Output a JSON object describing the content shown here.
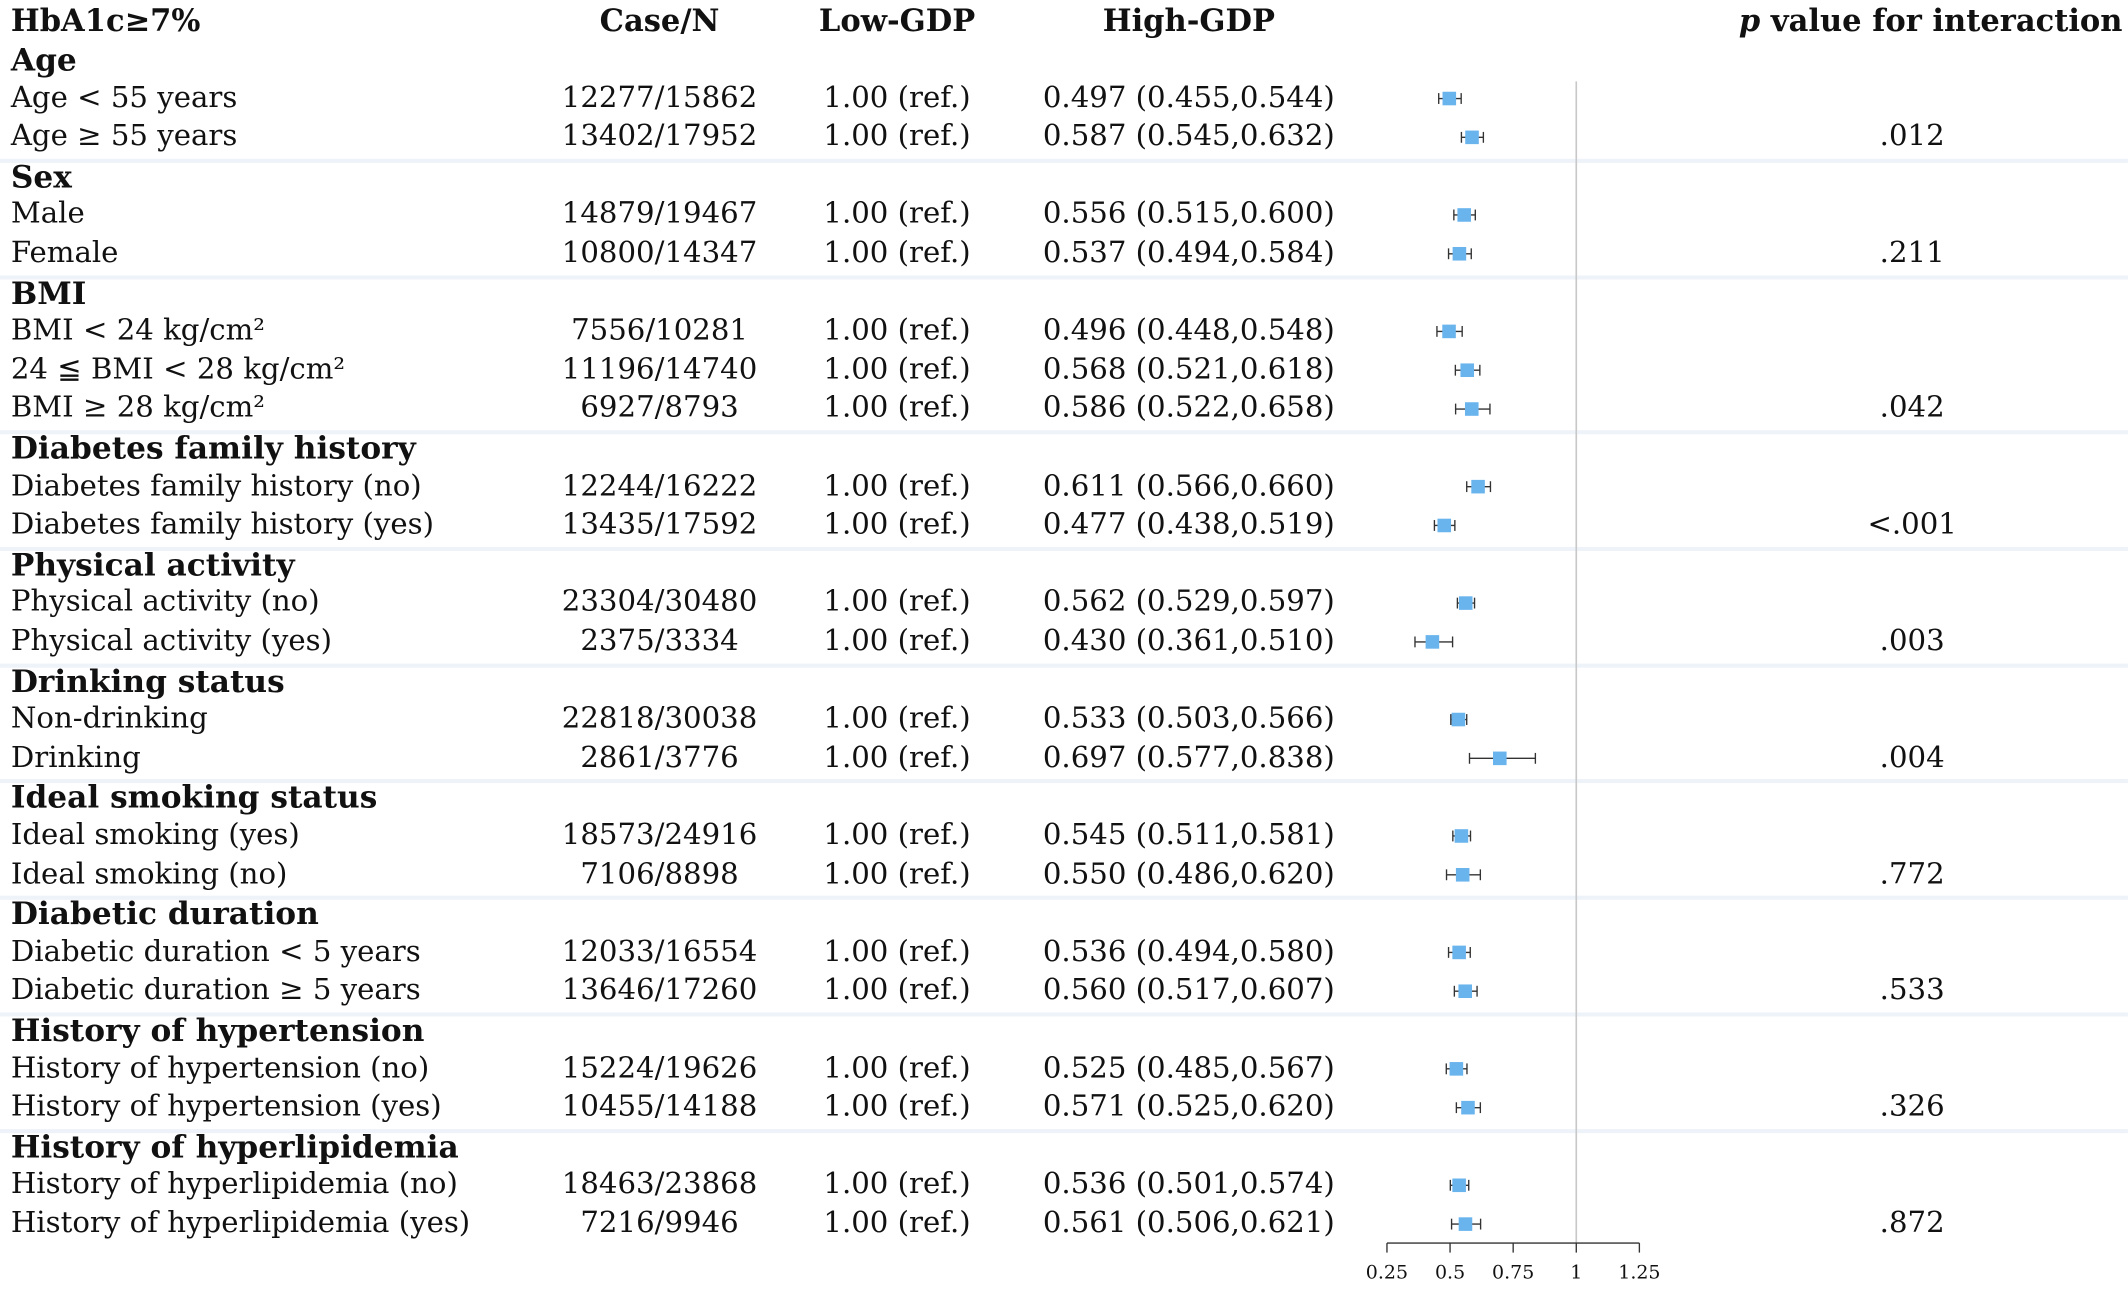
{
  "headers": {
    "outcome": "HbA1c≥7%",
    "case_n": "Case/N",
    "low_gdp": "Low-GDP",
    "high_gdp": "High-GDP",
    "p_label_italic": "p",
    "p_label_rest": "value for interaction"
  },
  "chart_data": {
    "type": "forest",
    "title": "",
    "xlabel": "",
    "xlim": [
      0.25,
      1.25
    ],
    "x_ticks": [
      "0.25",
      "0.5",
      "0.75",
      "1",
      "1.25"
    ],
    "reference_line": 1,
    "marker_color": "#6ab4ee",
    "groups": [
      {
        "title": "Age",
        "p": ".012",
        "rows": [
          {
            "label": "Age < 55 years",
            "case_n": "12277/15862",
            "low": "1.00 (ref.)",
            "high_text": "0.497 (0.455,0.544)",
            "est": 0.497,
            "lo": 0.455,
            "hi": 0.544
          },
          {
            "label": "Age ≥ 55 years",
            "case_n": "13402/17952",
            "low": "1.00 (ref.)",
            "high_text": "0.587 (0.545,0.632)",
            "est": 0.587,
            "lo": 0.545,
            "hi": 0.632
          }
        ]
      },
      {
        "title": "Sex",
        "p": ".211",
        "rows": [
          {
            "label": "Male",
            "case_n": "14879/19467",
            "low": "1.00 (ref.)",
            "high_text": "0.556 (0.515,0.600)",
            "est": 0.556,
            "lo": 0.515,
            "hi": 0.6
          },
          {
            "label": "Female",
            "case_n": "10800/14347",
            "low": "1.00 (ref.)",
            "high_text": "0.537 (0.494,0.584)",
            "est": 0.537,
            "lo": 0.494,
            "hi": 0.584
          }
        ]
      },
      {
        "title": "BMI",
        "p": ".042",
        "rows": [
          {
            "label": "BMI < 24 kg/cm²",
            "case_n": "7556/10281",
            "low": "1.00 (ref.)",
            "high_text": "0.496 (0.448,0.548)",
            "est": 0.496,
            "lo": 0.448,
            "hi": 0.548
          },
          {
            "label": "24 ≦ BMI < 28 kg/cm²",
            "case_n": "11196/14740",
            "low": "1.00 (ref.)",
            "high_text": "0.568 (0.521,0.618)",
            "est": 0.568,
            "lo": 0.521,
            "hi": 0.618
          },
          {
            "label": "BMI ≥ 28 kg/cm²",
            "case_n": "6927/8793",
            "low": "1.00 (ref.)",
            "high_text": "0.586 (0.522,0.658)",
            "est": 0.586,
            "lo": 0.522,
            "hi": 0.658
          }
        ]
      },
      {
        "title": "Diabetes family history",
        "p": "<.001",
        "rows": [
          {
            "label": "Diabetes family history (no)",
            "case_n": "12244/16222",
            "low": "1.00 (ref.)",
            "high_text": "0.611 (0.566,0.660)",
            "est": 0.611,
            "lo": 0.566,
            "hi": 0.66
          },
          {
            "label": "Diabetes family history (yes)",
            "case_n": "13435/17592",
            "low": "1.00 (ref.)",
            "high_text": "0.477 (0.438,0.519)",
            "est": 0.477,
            "lo": 0.438,
            "hi": 0.519
          }
        ]
      },
      {
        "title": "Physical activity",
        "p": ".003",
        "rows": [
          {
            "label": "Physical activity (no)",
            "case_n": "23304/30480",
            "low": "1.00 (ref.)",
            "high_text": "0.562 (0.529,0.597)",
            "est": 0.562,
            "lo": 0.529,
            "hi": 0.597
          },
          {
            "label": "Physical activity (yes)",
            "case_n": "2375/3334",
            "low": "1.00 (ref.)",
            "high_text": "0.430 (0.361,0.510)",
            "est": 0.43,
            "lo": 0.361,
            "hi": 0.51
          }
        ]
      },
      {
        "title": "Drinking status",
        "p": ".004",
        "rows": [
          {
            "label": "Non-drinking",
            "case_n": "22818/30038",
            "low": "1.00 (ref.)",
            "high_text": "0.533 (0.503,0.566)",
            "est": 0.533,
            "lo": 0.503,
            "hi": 0.566
          },
          {
            "label": "Drinking",
            "case_n": "2861/3776",
            "low": "1.00 (ref.)",
            "high_text": "0.697 (0.577,0.838)",
            "est": 0.697,
            "lo": 0.577,
            "hi": 0.838
          }
        ]
      },
      {
        "title": "Ideal smoking status",
        "p": ".772",
        "rows": [
          {
            "label": "Ideal smoking (yes)",
            "case_n": "18573/24916",
            "low": "1.00 (ref.)",
            "high_text": "0.545 (0.511,0.581)",
            "est": 0.545,
            "lo": 0.511,
            "hi": 0.581
          },
          {
            "label": "Ideal smoking (no)",
            "case_n": "7106/8898",
            "low": "1.00 (ref.)",
            "high_text": "0.550 (0.486,0.620)",
            "est": 0.55,
            "lo": 0.486,
            "hi": 0.62
          }
        ]
      },
      {
        "title": "Diabetic duration",
        "p": ".533",
        "rows": [
          {
            "label": "Diabetic duration < 5 years",
            "case_n": "12033/16554",
            "low": "1.00 (ref.)",
            "high_text": "0.536 (0.494,0.580)",
            "est": 0.536,
            "lo": 0.494,
            "hi": 0.58
          },
          {
            "label": "Diabetic duration ≥ 5 years",
            "case_n": "13646/17260",
            "low": "1.00 (ref.)",
            "high_text": "0.560 (0.517,0.607)",
            "est": 0.56,
            "lo": 0.517,
            "hi": 0.607
          }
        ]
      },
      {
        "title": "History of hypertension",
        "p": ".326",
        "rows": [
          {
            "label": "History of hypertension (no)",
            "case_n": "15224/19626",
            "low": "1.00 (ref.)",
            "high_text": "0.525 (0.485,0.567)",
            "est": 0.525,
            "lo": 0.485,
            "hi": 0.567
          },
          {
            "label": "History of hypertension (yes)",
            "case_n": "10455/14188",
            "low": "1.00 (ref.)",
            "high_text": "0.571 (0.525,0.620)",
            "est": 0.571,
            "lo": 0.525,
            "hi": 0.62
          }
        ]
      },
      {
        "title": "History of hyperlipidemia",
        "p": ".872",
        "rows": [
          {
            "label": "History of hyperlipidemia (no)",
            "case_n": "18463/23868",
            "low": "1.00 (ref.)",
            "high_text": "0.536 (0.501,0.574)",
            "est": 0.536,
            "lo": 0.501,
            "hi": 0.574
          },
          {
            "label": "History of hyperlipidemia (yes)",
            "case_n": "7216/9946",
            "low": "1.00 (ref.)",
            "high_text": "0.561 (0.506,0.621)",
            "est": 0.561,
            "lo": 0.506,
            "hi": 0.621
          }
        ]
      }
    ]
  }
}
